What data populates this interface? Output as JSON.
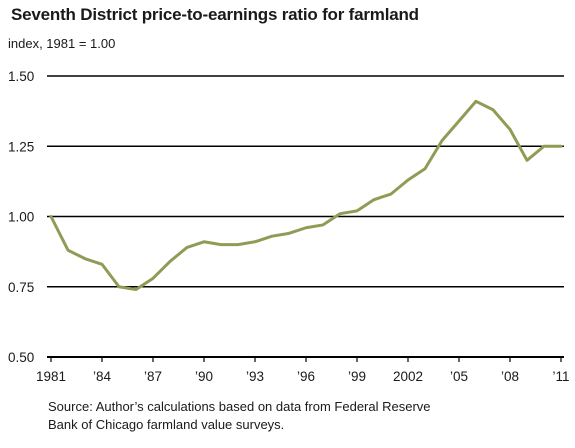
{
  "chart_data": {
    "type": "line",
    "title": "Seventh District price-to-earnings ratio for farmland",
    "subtitle": "index, 1981 = 1.00",
    "source_line1": "Source: Author’s calculations based on data from Federal Reserve",
    "source_line2": "Bank of Chicago farmland value surveys.",
    "xlim": [
      1981,
      2011
    ],
    "ylim": [
      0.5,
      1.5
    ],
    "y_ticks": [
      {
        "value": 0.5,
        "label": "0.50"
      },
      {
        "value": 0.75,
        "label": "0.75"
      },
      {
        "value": 1.0,
        "label": "1.00"
      },
      {
        "value": 1.25,
        "label": "1.25"
      },
      {
        "value": 1.5,
        "label": "1.50"
      }
    ],
    "x_ticks": [
      {
        "value": 1981,
        "label": "1981"
      },
      {
        "value": 1984,
        "label": "’84"
      },
      {
        "value": 1987,
        "label": "’87"
      },
      {
        "value": 1990,
        "label": "’90"
      },
      {
        "value": 1993,
        "label": "’93"
      },
      {
        "value": 1996,
        "label": "’96"
      },
      {
        "value": 1999,
        "label": "’99"
      },
      {
        "value": 2002,
        "label": "2002"
      },
      {
        "value": 2005,
        "label": "’05"
      },
      {
        "value": 2008,
        "label": "’08"
      },
      {
        "value": 2011,
        "label": "’11"
      }
    ],
    "grid": "horizontal",
    "line_color": "#8f9c55",
    "series": [
      {
        "name": "",
        "x": [
          1981,
          1982,
          1983,
          1984,
          1985,
          1986,
          1987,
          1988,
          1989,
          1990,
          1991,
          1992,
          1993,
          1994,
          1995,
          1996,
          1997,
          1998,
          1999,
          2000,
          2001,
          2002,
          2003,
          2004,
          2005,
          2006,
          2007,
          2008,
          2009,
          2010,
          2011
        ],
        "y": [
          1.0,
          0.88,
          0.85,
          0.83,
          0.75,
          0.74,
          0.78,
          0.84,
          0.89,
          0.91,
          0.9,
          0.9,
          0.91,
          0.93,
          0.94,
          0.96,
          0.97,
          1.01,
          1.02,
          1.06,
          1.08,
          1.13,
          1.17,
          1.27,
          1.34,
          1.41,
          1.38,
          1.31,
          1.2,
          1.25,
          1.25
        ]
      }
    ]
  }
}
